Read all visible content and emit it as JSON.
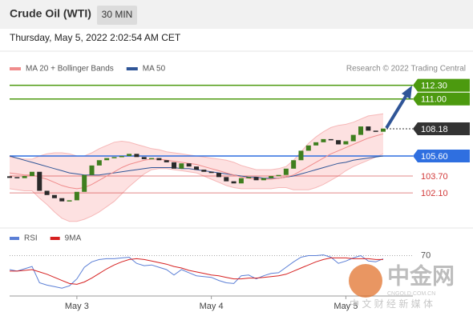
{
  "header": {
    "title": "Crude Oil (WTI)",
    "interval": "30 MIN",
    "timestamp": "Thursday, May 5, 2022 2:02:54 AM CET"
  },
  "watermark": {
    "name": "中金网",
    "domain": "CNGOLD.COM.CN",
    "slogan": "中 文 财 经 新 媒 体"
  },
  "chart_data": [
    {
      "type": "candlestick",
      "credit": "Research © 2022 Trading Central",
      "up_color": "#3f7f1f",
      "down_color": "#2a2a2a",
      "band_color": "#fcd9d9",
      "values": [
        103.6,
        103.5,
        103.7,
        104.1,
        102.3,
        101.9,
        101.6,
        101.3,
        101.4,
        102.2,
        103.8,
        104.7,
        105.2,
        105.4,
        105.5,
        105.6,
        105.8,
        105.5,
        105.3,
        105.4,
        105.2,
        105.0,
        104.4,
        104.9,
        104.6,
        104.3,
        104.1,
        104.0,
        103.6,
        103.2,
        103.0,
        103.5,
        103.6,
        103.3,
        103.5,
        103.7,
        103.8,
        104.4,
        105.2,
        106.1,
        106.6,
        106.9,
        107.2,
        107.1,
        106.7,
        107.0,
        107.6,
        108.4,
        108.0,
        107.9,
        108.2
      ],
      "series": [
        {
          "name": "MA 20 + Bollinger Bands",
          "color": "#f08c8c",
          "values": [
            104.0,
            103.9,
            103.8,
            103.8,
            103.6,
            103.4,
            103.1,
            102.8,
            102.6,
            102.5,
            102.6,
            102.9,
            103.3,
            103.7,
            104.1,
            104.5,
            104.8,
            105.0,
            105.2,
            105.3,
            105.3,
            105.2,
            105.1,
            105.0,
            104.9,
            104.8,
            104.6,
            104.4,
            104.2,
            104.0,
            103.8,
            103.6,
            103.5,
            103.4,
            103.4,
            103.4,
            103.5,
            103.6,
            103.8,
            104.2,
            104.6,
            105.0,
            105.4,
            105.8,
            106.1,
            106.4,
            106.7,
            107.0,
            107.3,
            107.5,
            107.7
          ],
          "upper": [
            105.5,
            105.4,
            105.3,
            105.3,
            105.6,
            105.8,
            105.9,
            105.9,
            105.8,
            105.6,
            105.6,
            105.9,
            106.3,
            106.6,
            106.9,
            107.0,
            106.9,
            106.7,
            106.5,
            106.3,
            106.2,
            106.0,
            105.9,
            105.8,
            105.7,
            105.6,
            105.5,
            105.4,
            105.3,
            105.2,
            105.0,
            104.7,
            104.5,
            104.3,
            104.3,
            104.3,
            104.4,
            104.6,
            105.2,
            106.0,
            106.8,
            107.4,
            107.9,
            108.3,
            108.5,
            108.6,
            108.8,
            109.1,
            109.4,
            109.5,
            109.6
          ],
          "lower": [
            102.5,
            102.4,
            102.3,
            102.3,
            101.6,
            101.0,
            100.3,
            99.7,
            99.4,
            99.4,
            99.6,
            99.9,
            100.3,
            100.8,
            101.3,
            102.0,
            102.7,
            103.3,
            103.9,
            104.3,
            104.4,
            104.4,
            104.3,
            104.2,
            104.1,
            104.0,
            103.7,
            103.4,
            103.1,
            102.8,
            102.6,
            102.5,
            102.5,
            102.5,
            102.5,
            102.5,
            102.6,
            102.6,
            102.4,
            102.4,
            102.4,
            102.6,
            102.9,
            103.3,
            103.7,
            104.2,
            104.6,
            104.9,
            105.2,
            105.5,
            105.8
          ]
        },
        {
          "name": "MA 50",
          "color": "#2f5597",
          "values": [
            105.6,
            105.4,
            105.2,
            105.0,
            104.8,
            104.6,
            104.4,
            104.2,
            104.0,
            103.9,
            103.8,
            103.8,
            103.8,
            103.9,
            104.0,
            104.1,
            104.2,
            104.3,
            104.4,
            104.5,
            104.5,
            104.5,
            104.5,
            104.4,
            104.4,
            104.3,
            104.2,
            104.1,
            104.0,
            103.9,
            103.8,
            103.7,
            103.6,
            103.6,
            103.5,
            103.5,
            103.5,
            103.6,
            103.7,
            103.9,
            104.1,
            104.3,
            104.5,
            104.7,
            104.9,
            105.0,
            105.2,
            105.3,
            105.4,
            105.5,
            105.6
          ]
        }
      ],
      "ylim": [
        99,
        114.7
      ],
      "levels": [
        {
          "value": 112.3,
          "label": "112.30",
          "color": "#4c9a0f",
          "boxed": true
        },
        {
          "value": 111.0,
          "label": "111.00",
          "color": "#4c9a0f",
          "boxed": true
        },
        {
          "value": 108.18,
          "label": "108.18",
          "color": "#333333",
          "boxed": true
        },
        {
          "value": 105.6,
          "label": "105.60",
          "color": "#2f6fe0",
          "boxed": true
        },
        {
          "value": 103.7,
          "label": "103.70",
          "color": "#d23a3a",
          "boxed": false
        },
        {
          "value": 102.1,
          "label": "102.10",
          "color": "#d23a3a",
          "boxed": false
        }
      ]
    },
    {
      "type": "line",
      "categories": [
        null,
        null,
        null,
        null,
        null,
        null,
        null,
        null,
        null,
        "May 3",
        null,
        null,
        null,
        null,
        null,
        null,
        null,
        null,
        null,
        null,
        null,
        null,
        null,
        null,
        null,
        null,
        null,
        "May 4",
        null,
        null,
        null,
        null,
        null,
        null,
        null,
        null,
        null,
        null,
        null,
        null,
        null,
        null,
        null,
        null,
        null,
        "May 5",
        null,
        null,
        null,
        null,
        null
      ],
      "series": [
        {
          "name": "RSI",
          "color": "#5b7fd6",
          "values": [
            52,
            50,
            53,
            56,
            35,
            32,
            30,
            28,
            31,
            40,
            55,
            62,
            65,
            66,
            66,
            67,
            68,
            60,
            57,
            58,
            55,
            52,
            45,
            52,
            48,
            44,
            43,
            42,
            38,
            35,
            34,
            44,
            45,
            40,
            44,
            47,
            48,
            55,
            62,
            68,
            70,
            70,
            71,
            68,
            60,
            63,
            67,
            70,
            63,
            62,
            66
          ]
        },
        {
          "name": "9MA",
          "color": "#d62020",
          "values": [
            50,
            50,
            51,
            52,
            49,
            46,
            42,
            38,
            34,
            33,
            36,
            41,
            47,
            53,
            58,
            62,
            65,
            66,
            65,
            63,
            61,
            59,
            56,
            54,
            51,
            49,
            47,
            45,
            44,
            42,
            40,
            40,
            41,
            41,
            42,
            43,
            44,
            46,
            50,
            54,
            58,
            62,
            65,
            67,
            67,
            67,
            66,
            66,
            66,
            65,
            65
          ]
        }
      ],
      "ylim": [
        20,
        85
      ],
      "yticks": [
        70
      ]
    }
  ]
}
